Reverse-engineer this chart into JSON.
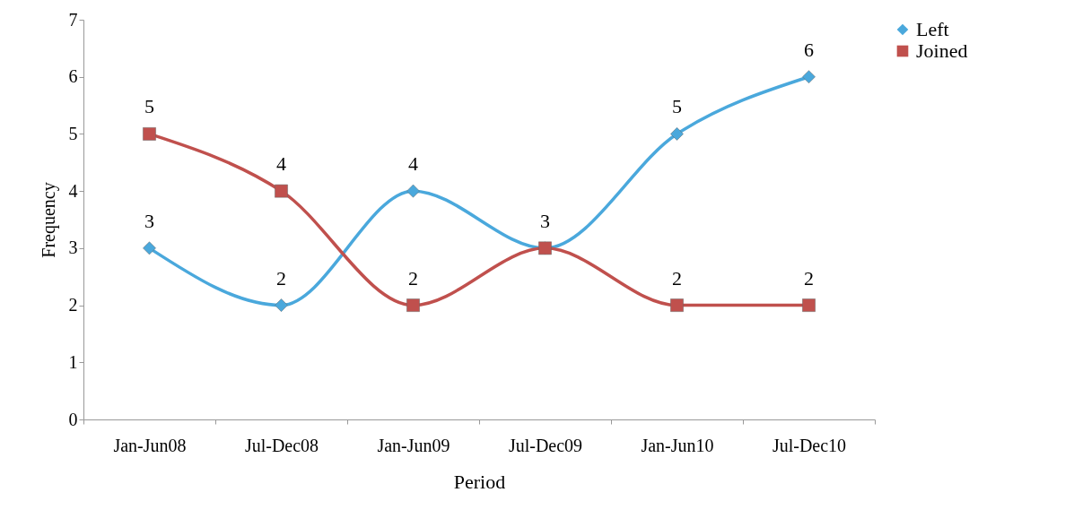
{
  "chart_data": {
    "type": "line",
    "xlabel": "Period",
    "ylabel": "Frequency",
    "categories": [
      "Jan-Jun08",
      "Jul-Dec08",
      "Jan-Jun09",
      "Jul-Dec09",
      "Jan-Jun10",
      "Jul-Dec10"
    ],
    "series": [
      {
        "name": "Left",
        "color": "#4aa8dc",
        "marker": "diamond",
        "values": [
          3,
          2,
          4,
          3,
          5,
          6
        ],
        "value_labels": [
          "3",
          "2",
          "4",
          "3",
          "5",
          "6"
        ]
      },
      {
        "name": "Joined",
        "color": "#c0504d",
        "marker": "square",
        "values": [
          5,
          4,
          2,
          3,
          2,
          2
        ],
        "value_labels": [
          "5",
          "4",
          "2",
          null,
          "2",
          "2"
        ]
      }
    ],
    "ylim": [
      0,
      7
    ],
    "yticks": [
      0,
      1,
      2,
      3,
      4,
      5,
      6,
      7
    ],
    "grid": false,
    "legend": "right"
  }
}
